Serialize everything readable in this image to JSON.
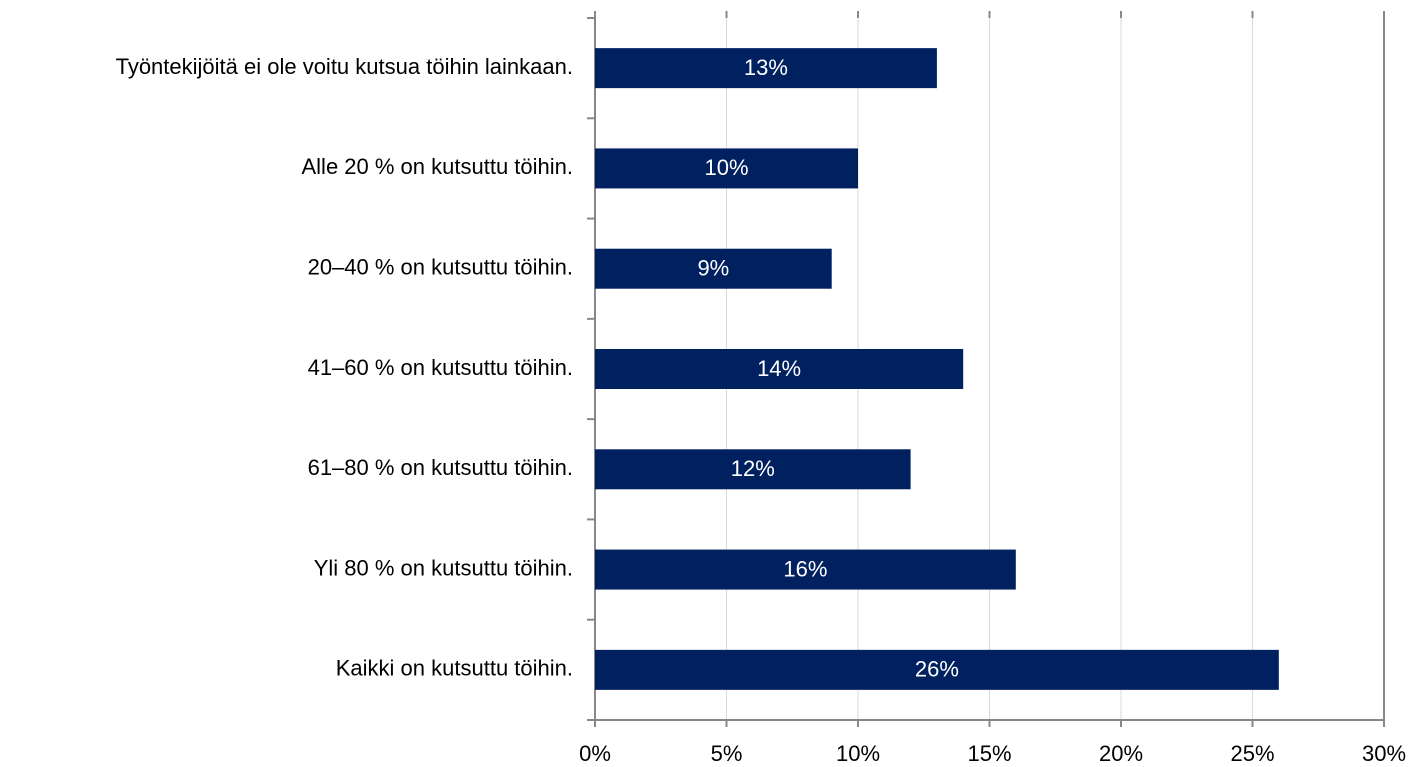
{
  "chart_data": {
    "type": "barh",
    "categories": [
      "Työntekijöitä ei ole voitu kutsua töihin lainkaan.",
      "Alle 20 % on kutsuttu töihin.",
      "20–40 % on kutsuttu töihin.",
      "41–60 % on kutsuttu töihin.",
      "61–80 % on kutsuttu töihin.",
      "Yli 80 % on kutsuttu töihin.",
      "Kaikki on kutsuttu töihin."
    ],
    "values": [
      13,
      10,
      9,
      14,
      12,
      16,
      26
    ],
    "value_labels": [
      "13%",
      "10%",
      "9%",
      "14%",
      "12%",
      "16%",
      "26%"
    ],
    "color": "#002060",
    "xlim": [
      0,
      30
    ],
    "xticks": [
      {
        "value": 0,
        "label": "0%"
      },
      {
        "value": 5,
        "label": "5%"
      },
      {
        "value": 10,
        "label": "10%"
      },
      {
        "value": 15,
        "label": "15%"
      },
      {
        "value": 20,
        "label": "20%"
      },
      {
        "value": 25,
        "label": "25%"
      },
      {
        "value": 30,
        "label": "30%"
      }
    ],
    "grid": true
  }
}
